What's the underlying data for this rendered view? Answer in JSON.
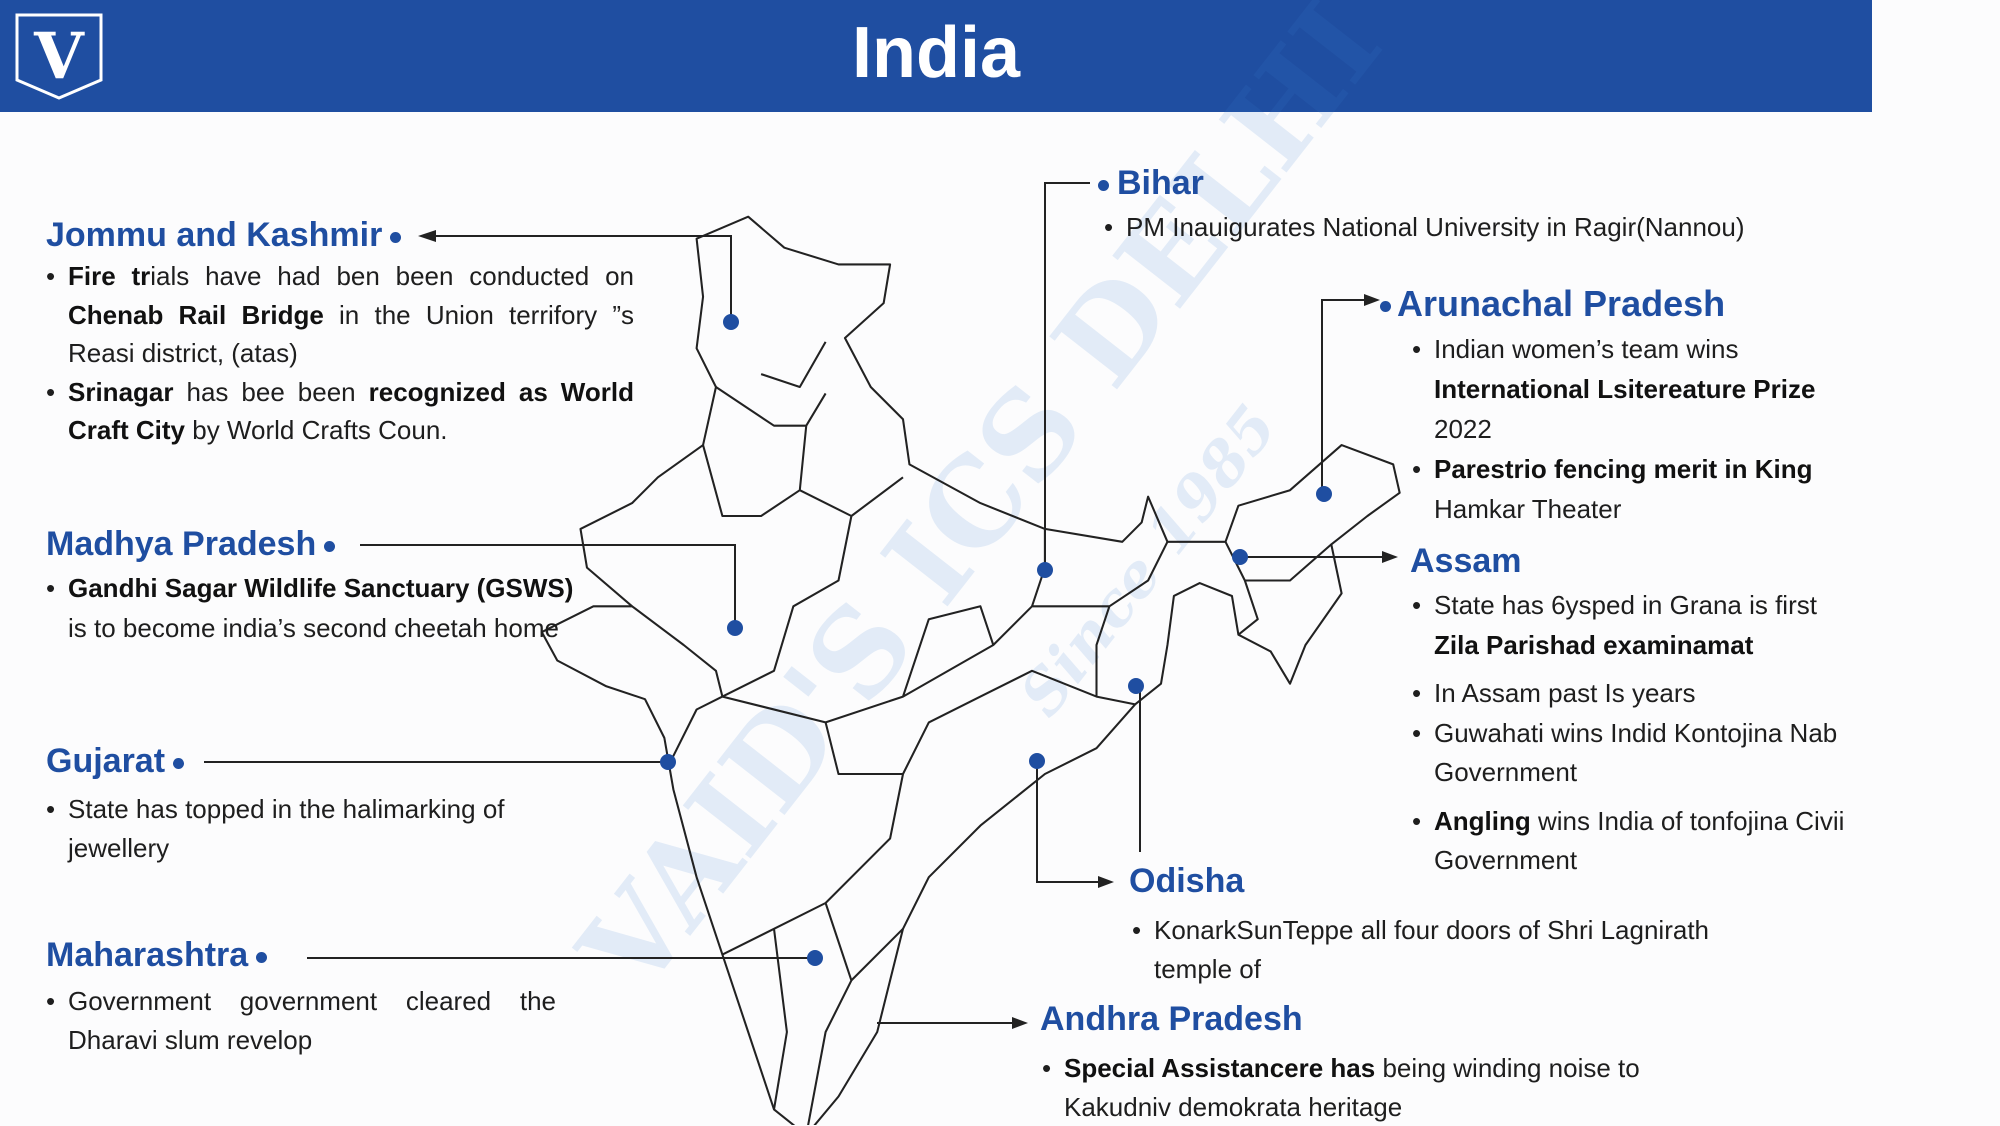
{
  "header": {
    "title": "India",
    "logo_letter": "V",
    "background": "#1f4ea1"
  },
  "watermark": {
    "line1": "VAID'S ICS DELHI",
    "line2": "Since 1985"
  },
  "accent": "#1f4ea1",
  "states": {
    "jk": {
      "title": "Jommu and Kashmir",
      "bullets": [
        [
          {
            "t": "Fire tr",
            "b": true
          },
          {
            "t": "ials have had ben been conducted on ",
            "b": false
          },
          {
            "t": "Chenab Rail Bridge",
            "b": true
          },
          {
            "t": " in the Union terrifory ”s Reasi district, (atas)",
            "b": false
          }
        ],
        [
          {
            "t": "Srinagar",
            "b": true
          },
          {
            "t": " has bee been ",
            "b": false
          },
          {
            "t": "recognized as World Craft City",
            "b": true
          },
          {
            "t": " by World Crafts Coun.",
            "b": false
          }
        ]
      ]
    },
    "mp": {
      "title": "Madhya Pradesh",
      "bullets": [
        [
          {
            "t": "Gandhi Sagar Wildlife Sanctuary (GSWS)",
            "b": true
          },
          {
            "t": " is to become india’s second cheetah home",
            "b": false
          }
        ]
      ]
    },
    "guj": {
      "title": "Gujarat",
      "bullets": [
        [
          {
            "t": "State has topped in the halimarking of jewellery",
            "b": false
          }
        ]
      ]
    },
    "maha": {
      "title": "Maharashtra",
      "bullets": [
        [
          {
            "t": "Government government cleared the Dharavi slum revelop",
            "b": false
          }
        ]
      ]
    },
    "bihar": {
      "title": "Bihar",
      "bullets": [
        [
          {
            "t": "PM Inauigurates National University in Ragir(Nannou)",
            "b": false
          }
        ]
      ]
    },
    "arun": {
      "title": "Arunachal Pradesh",
      "bullets": [
        [
          {
            "t": "Indian women’s team wins ",
            "b": false
          },
          {
            "t": "International  Lsitereature Prize",
            "b": true
          },
          {
            "t": " 2022",
            "b": false
          }
        ],
        [
          {
            "t": "Parestrio  fencing merit in King",
            "b": true
          },
          {
            "t": " Hamkar Theater",
            "b": false
          }
        ]
      ]
    },
    "assam": {
      "title": "Assam",
      "bullets": [
        [
          {
            "t": "State has 6ysped in Grana is first ",
            "b": false
          },
          {
            "t": "Zila Parishad examinamat",
            "b": true
          }
        ],
        [
          {
            "t": "In Assam past  Is years",
            "b": false
          }
        ],
        [
          {
            "t": "Guwahati  wins  Indid Kontojina Nab Government",
            "b": false
          }
        ],
        [
          {
            "t": "Angling",
            "b": true
          },
          {
            "t": " wins India of tonfojina Civii Government",
            "b": false
          }
        ]
      ]
    },
    "odisha": {
      "title": "Odisha",
      "bullets": [
        [
          {
            "t": "KonarkSunTeppe  all four doors of Shri Lagnirath temple of",
            "b": false
          }
        ]
      ]
    },
    "andhra": {
      "title": "Andhra Pradesh",
      "bullets": [
        [
          {
            "t": "Special Assistancere has",
            "b": true
          },
          {
            "t": " being winding noise to Kakudniv demokrata heritage",
            "b": false
          }
        ]
      ]
    }
  }
}
